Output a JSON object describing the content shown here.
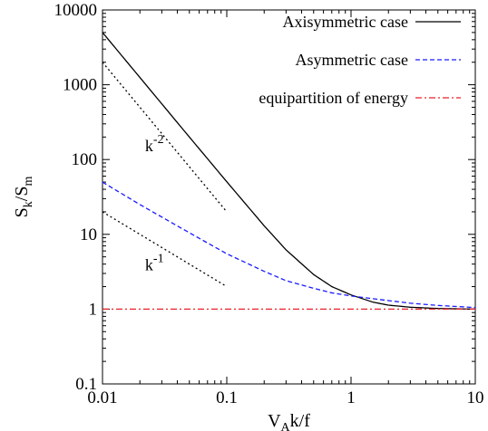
{
  "chart_data": {
    "type": "line",
    "title": "",
    "xlabel": {
      "main": "V",
      "sub": "A",
      "rest": "k/f"
    },
    "ylabel": {
      "part1": "S",
      "sub1": "k",
      "part2": "/S",
      "sub2": "m"
    },
    "xscale": "log",
    "yscale": "log",
    "xlim": [
      0.01,
      10
    ],
    "ylim": [
      0.1,
      10000
    ],
    "xticks": [
      {
        "value": 0.01,
        "label": "0.01"
      },
      {
        "value": 0.1,
        "label": "0.1"
      },
      {
        "value": 1,
        "label": "1"
      },
      {
        "value": 10,
        "label": "10"
      }
    ],
    "yticks": [
      {
        "value": 0.1,
        "label": "0.1"
      },
      {
        "value": 1,
        "label": "1"
      },
      {
        "value": 10,
        "label": "10"
      },
      {
        "value": 100,
        "label": "100"
      },
      {
        "value": 1000,
        "label": "1000"
      },
      {
        "value": 10000,
        "label": "10000"
      }
    ],
    "grid": false,
    "legend_position": "top-right",
    "series": [
      {
        "name": "Axisymmetric case",
        "color": "#000000",
        "style": "solid",
        "x": [
          0.01,
          0.02,
          0.05,
          0.1,
          0.2,
          0.3,
          0.5,
          0.7,
          1,
          1.5,
          2,
          3,
          5,
          10
        ],
        "y": [
          5000,
          1250,
          200,
          50.5,
          13,
          6.2,
          2.9,
          2.0,
          1.55,
          1.24,
          1.13,
          1.06,
          1.02,
          1.0
        ]
      },
      {
        "name": "Asymmetric case",
        "color": "#1a1aff",
        "style": "dashed",
        "x": [
          0.01,
          0.02,
          0.05,
          0.1,
          0.2,
          0.3,
          0.5,
          0.7,
          1,
          1.5,
          2,
          3,
          5,
          10
        ],
        "y": [
          50,
          25,
          10.5,
          5.5,
          3.2,
          2.4,
          1.9,
          1.65,
          1.5,
          1.38,
          1.3,
          1.2,
          1.12,
          1.05
        ]
      },
      {
        "name": "equipartition of energy",
        "color": "#e8222b",
        "style": "dash-dot",
        "x": [
          0.01,
          10
        ],
        "y": [
          1,
          1
        ]
      }
    ],
    "reference_lines": [
      {
        "label_base": "k",
        "label_exp": "-2",
        "x": [
          0.01,
          0.1
        ],
        "y": [
          2000,
          20
        ],
        "color": "#000000",
        "style": "dotted"
      },
      {
        "label_base": "k",
        "label_exp": "-1",
        "x": [
          0.01,
          0.1
        ],
        "y": [
          20,
          2
        ],
        "color": "#000000",
        "style": "dotted"
      }
    ]
  }
}
